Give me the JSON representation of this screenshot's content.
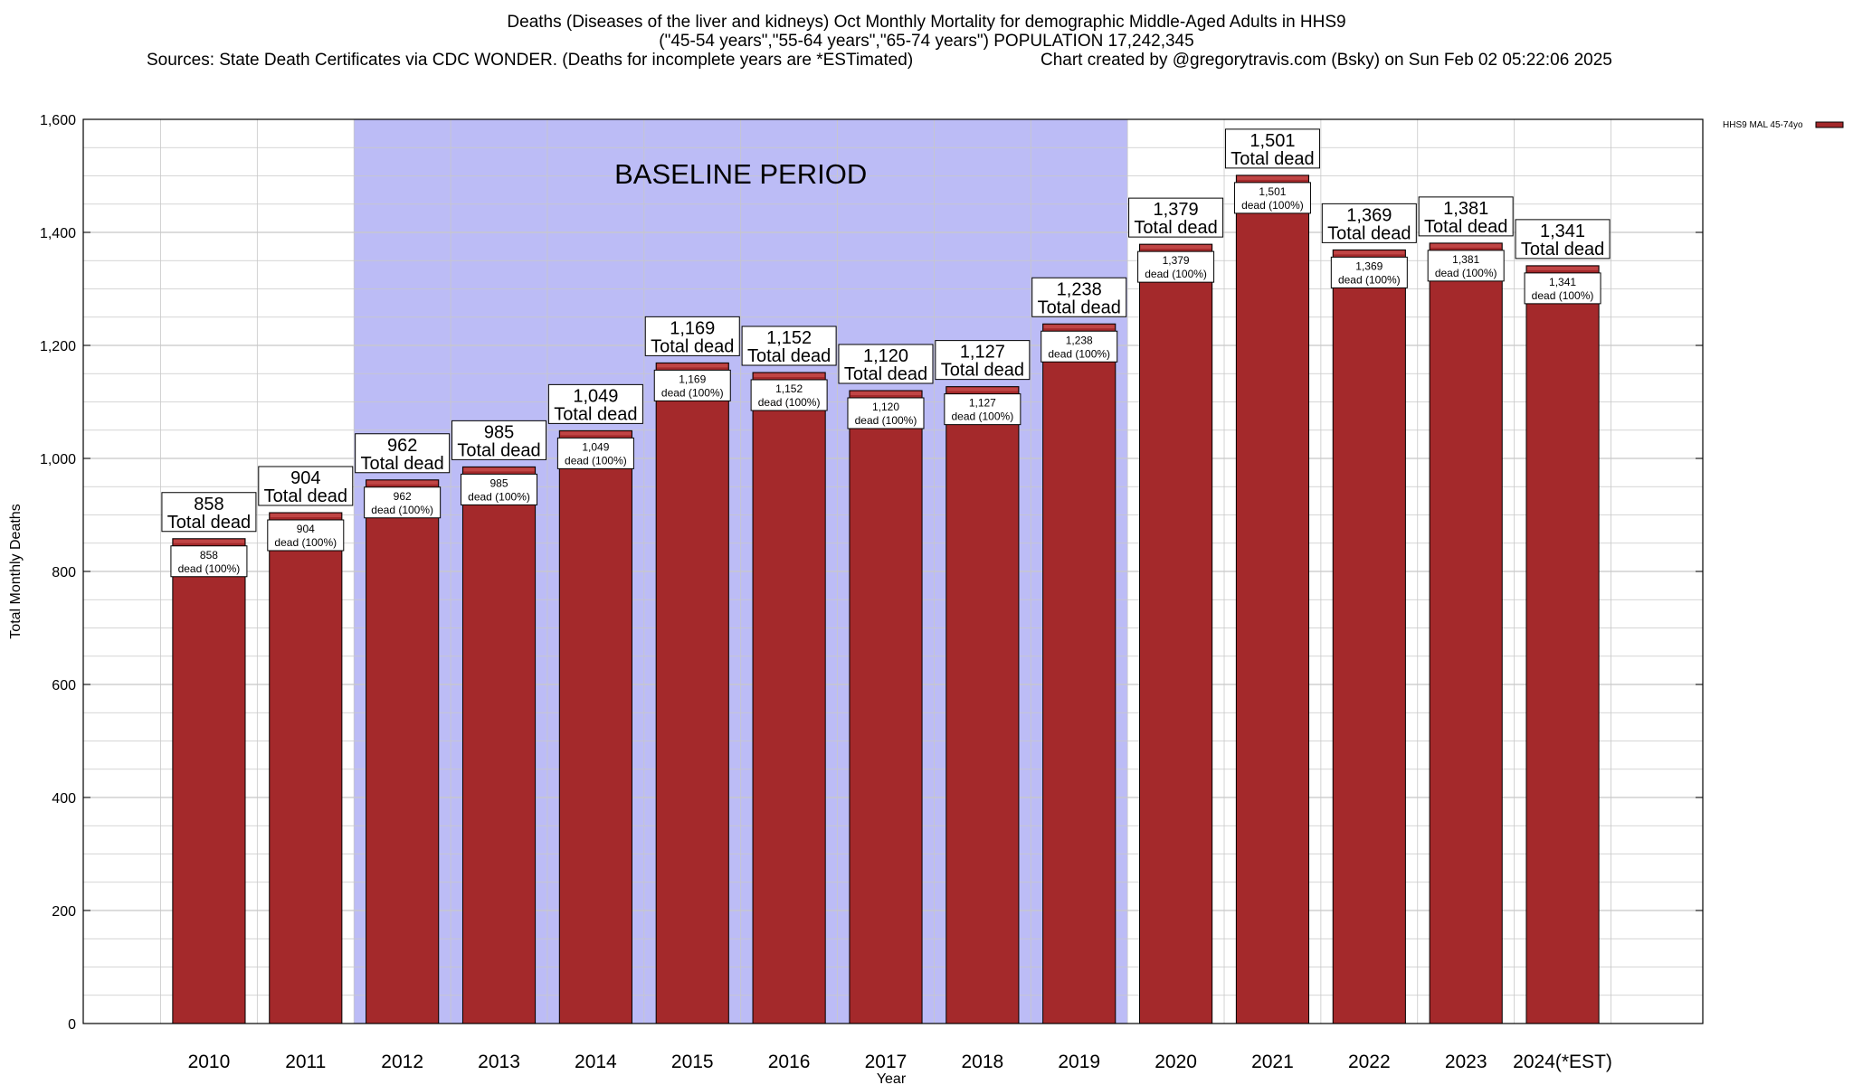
{
  "header": {
    "title_line1": "Deaths (Diseases of the liver and kidneys) Oct Monthly Mortality for demographic Middle-Aged Adults in HHS9",
    "title_line2": "(\"45-54 years\",\"55-64 years\",\"65-74 years\") POPULATION 17,242,345",
    "sources": "Sources: State Death Certificates via CDC WONDER. (Deaths for incomplete years are *ESTimated)",
    "credit": "Chart created by @gregorytravis.com (Bsky) on Sun Feb 02 05:22:06 2025"
  },
  "colors": {
    "bar_fill": "#a4292b",
    "bar_top": "#c04545",
    "baseline_band": "#bcbcf6",
    "grid": "#c8c8c8"
  },
  "chart_data": {
    "type": "bar",
    "title": "Deaths (Diseases of the liver and kidneys) Oct Monthly Mortality for demographic Middle-Aged Adults in HHS9",
    "xlabel": "Year",
    "ylabel": "Total Monthly Deaths",
    "ylim": [
      0,
      1600
    ],
    "yticks": [
      0,
      200,
      400,
      600,
      800,
      1000,
      1200,
      1400,
      1600
    ],
    "ytick_labels": [
      "0",
      "200",
      "400",
      "600",
      "800",
      "1,000",
      "1,200",
      "1,400",
      "1,600"
    ],
    "categories": [
      "2010",
      "2011",
      "2012",
      "2013",
      "2014",
      "2015",
      "2016",
      "2017",
      "2018",
      "2019",
      "2020",
      "2021",
      "2022",
      "2023",
      "2024(*EST)"
    ],
    "series": [
      {
        "name": "HHS9 MAL 45-74yo",
        "values": [
          858,
          904,
          962,
          985,
          1049,
          1169,
          1152,
          1120,
          1127,
          1238,
          1379,
          1501,
          1369,
          1381,
          1341
        ]
      }
    ],
    "value_labels": [
      "858",
      "904",
      "962",
      "985",
      "1,049",
      "1,169",
      "1,152",
      "1,120",
      "1,127",
      "1,238",
      "1,379",
      "1,501",
      "1,369",
      "1,381",
      "1,341"
    ],
    "total_label": "Total dead",
    "inner_label": "dead (100%)",
    "baseline": {
      "label": "BASELINE PERIOD",
      "from": "2012",
      "to": "2019"
    },
    "grid": true,
    "legend_position": "top-right"
  }
}
